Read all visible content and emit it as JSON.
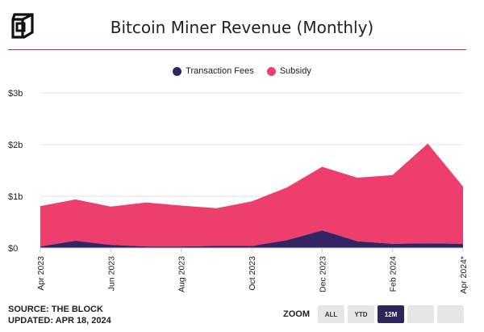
{
  "header": {
    "title": "Bitcoin Miner Revenue (Monthly)"
  },
  "colors": {
    "fees": "#332563",
    "subsidy": "#ee3e6d",
    "accent": "#9b2fae",
    "zoom_active": "#2d2658"
  },
  "chart_data": {
    "type": "area",
    "stacked": true,
    "title": "Bitcoin Miner Revenue (Monthly)",
    "x": [
      "Apr 2023",
      "May 2023",
      "Jun 2023",
      "Jul 2023",
      "Aug 2023",
      "Sep 2023",
      "Oct 2023",
      "Nov 2023",
      "Dec 2023",
      "Jan 2024",
      "Feb 2024",
      "Mar 2024",
      "Apr 2024*"
    ],
    "x_tick_labels": [
      {
        "index": 0,
        "label": "Apr 2023"
      },
      {
        "index": 2,
        "label": "Jun 2023"
      },
      {
        "index": 4,
        "label": "Aug 2023"
      },
      {
        "index": 6,
        "label": "Oct 2023"
      },
      {
        "index": 8,
        "label": "Dec 2023"
      },
      {
        "index": 10,
        "label": "Feb 2024"
      },
      {
        "index": 12,
        "label": "Apr 2024*"
      }
    ],
    "series": [
      {
        "name": "Transaction Fees",
        "values": [
          0.03,
          0.14,
          0.06,
          0.03,
          0.03,
          0.04,
          0.04,
          0.15,
          0.34,
          0.13,
          0.08,
          0.09,
          0.08
        ]
      },
      {
        "name": "Subsidy",
        "values": [
          0.78,
          0.8,
          0.74,
          0.85,
          0.79,
          0.73,
          0.86,
          1.02,
          1.23,
          1.23,
          1.33,
          1.93,
          1.11
        ]
      }
    ],
    "ylim": [
      0,
      3
    ],
    "y_ticks": [
      {
        "value": 0,
        "label": "$0"
      },
      {
        "value": 1,
        "label": "$1b"
      },
      {
        "value": 2,
        "label": "$2b"
      },
      {
        "value": 3,
        "label": "$3b"
      }
    ],
    "grid": true,
    "legend_position": "top-center"
  },
  "footer": {
    "source": "SOURCE: THE BLOCK",
    "updated": "UPDATED: APR 18, 2024"
  },
  "zoom": {
    "label": "ZOOM",
    "buttons": [
      "ALL",
      "YTD",
      "12M",
      "",
      ""
    ],
    "active_index": 2
  }
}
